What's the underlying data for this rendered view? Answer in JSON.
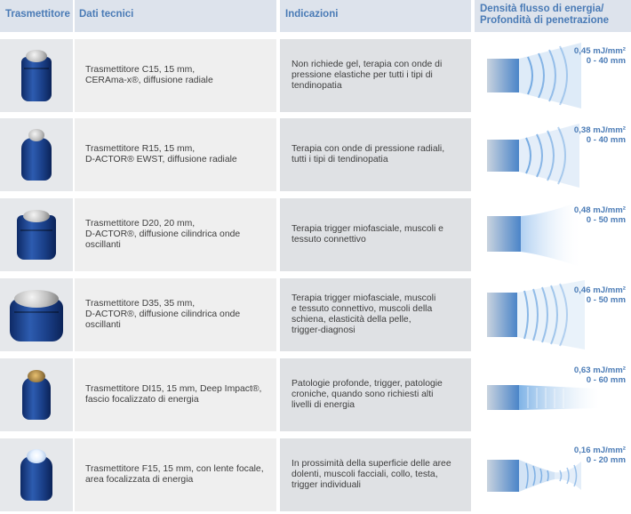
{
  "header": {
    "col1": "Trasmettitore",
    "col2": "Dati tecnici",
    "col3": "Indicazioni",
    "col4_line1": "Densità flusso di energia/",
    "col4_line2": "Profondità di penetrazione"
  },
  "colors": {
    "accent": "#4a7bb6",
    "wave": "#4a90d9"
  },
  "rows": [
    {
      "tech": [
        "Trasmettitore C15, 15 mm,",
        "CERAma-x®, diffusione radiale"
      ],
      "ind": [
        "Non richiede gel, terapia con onde di",
        "pressione elastiche per tutti i tipi di",
        "tendinopatia"
      ],
      "density": "0,45 mJ/mm²",
      "depth": "0 - 40 mm",
      "icon": "radial-transmitter-icon"
    },
    {
      "tech": [
        "Trasmettitore R15, 15 mm,",
        "D-ACTOR® EWST, diffusione radiale"
      ],
      "ind": [
        "Terapia con onde di pressione radiali,",
        "tutti i tipi di tendinopatia"
      ],
      "density": "0,38 mJ/mm²",
      "depth": "0 - 40 mm",
      "icon": "radial-transmitter-icon"
    },
    {
      "tech": [
        "Trasmettitore D20, 20 mm,",
        "D-ACTOR®, diffusione cilindrica onde",
        "oscillanti"
      ],
      "ind": [
        "Terapia trigger miofasciale, muscoli e",
        "tessuto connettivo"
      ],
      "density": "0,48 mJ/mm²",
      "depth": "0 - 50 mm",
      "icon": "cylindrical-transmitter-icon"
    },
    {
      "tech": [
        "Trasmettitore D35, 35 mm,",
        "D-ACTOR®, diffusione cilindrica onde",
        "oscillanti"
      ],
      "ind": [
        "Terapia trigger miofasciale, muscoli",
        "e tessuto connettivo, muscoli della",
        "schiena, elasticità della pelle,",
        "trigger-diagnosi"
      ],
      "density": "0,46 mJ/mm²",
      "depth": "0 - 50 mm",
      "icon": "wide-transmitter-icon"
    },
    {
      "tech": [
        "Trasmettitore DI15, 15 mm, Deep Impact®,",
        "fascio focalizzato di energia"
      ],
      "ind": [
        "Patologie profonde, trigger, patologie",
        "croniche, quando sono richiesti alti",
        "livelli di energia"
      ],
      "density": "0,63 mJ/mm²",
      "depth": "0 - 60 mm",
      "icon": "focused-transmitter-icon"
    },
    {
      "tech": [
        "Trasmettitore F15, 15 mm, con lente focale,",
        "area focalizzata di energia"
      ],
      "ind": [
        "In prossimità della superficie delle aree",
        "dolenti, muscoli facciali, collo, testa,",
        "trigger individuali"
      ],
      "density": "0,16 mJ/mm²",
      "depth": "0 - 20 mm",
      "icon": "lens-transmitter-icon"
    }
  ]
}
